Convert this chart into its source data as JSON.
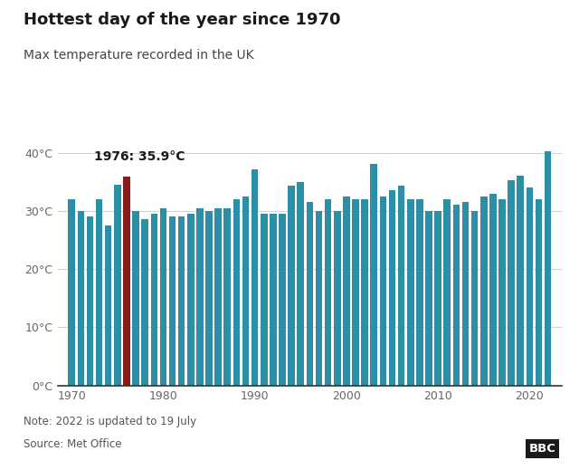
{
  "title": "Hottest day of the year since 1970",
  "subtitle": "Max temperature recorded in the UK",
  "note": "Note: 2022 is updated to 19 July",
  "source": "Source: Met Office",
  "bbc_label": "BBC",
  "highlight_year": 1976,
  "highlight_label": "1976: 35.9°C",
  "bar_color": "#2D8FA5",
  "highlight_color": "#8B1A1A",
  "background_color": "#ffffff",
  "yticks": [
    0,
    10,
    20,
    30,
    40
  ],
  "xticks": [
    1970,
    1980,
    1990,
    2000,
    2010,
    2020
  ],
  "ylim": [
    0,
    42
  ],
  "years": [
    1970,
    1971,
    1972,
    1973,
    1974,
    1975,
    1976,
    1977,
    1978,
    1979,
    1980,
    1981,
    1982,
    1983,
    1984,
    1985,
    1986,
    1987,
    1988,
    1989,
    1990,
    1991,
    1992,
    1993,
    1994,
    1995,
    1996,
    1997,
    1998,
    1999,
    2000,
    2001,
    2002,
    2003,
    2004,
    2005,
    2006,
    2007,
    2008,
    2009,
    2010,
    2011,
    2012,
    2013,
    2014,
    2015,
    2016,
    2017,
    2018,
    2019,
    2020,
    2021,
    2022
  ],
  "values": [
    32.0,
    30.0,
    29.0,
    32.0,
    27.5,
    34.5,
    35.9,
    30.0,
    28.5,
    29.5,
    30.5,
    29.0,
    29.0,
    29.5,
    30.5,
    30.0,
    30.5,
    30.5,
    32.0,
    32.5,
    37.1,
    29.5,
    29.5,
    29.5,
    34.4,
    34.9,
    31.5,
    30.0,
    32.0,
    30.0,
    32.5,
    32.0,
    32.0,
    38.1,
    32.5,
    33.5,
    34.4,
    32.0,
    32.0,
    30.0,
    30.0,
    32.0,
    31.0,
    31.5,
    30.0,
    32.5,
    33.0,
    32.0,
    35.3,
    36.0,
    34.0,
    32.0,
    40.3
  ]
}
